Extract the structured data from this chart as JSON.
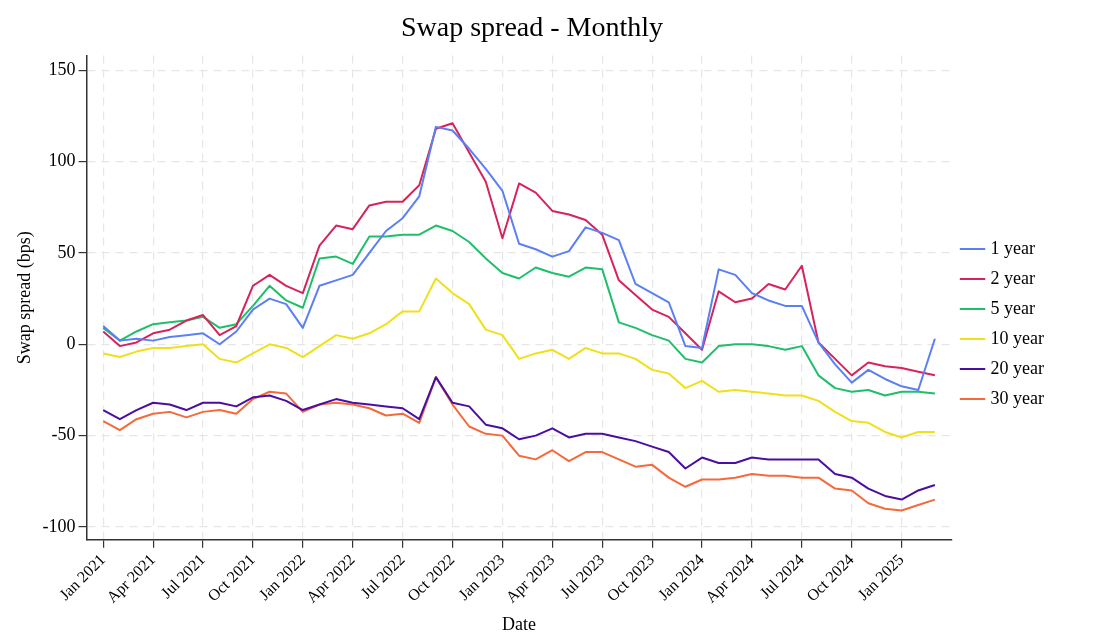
{
  "chart_data": {
    "type": "line",
    "title": "Swap spread - Monthly",
    "xlabel": "Date",
    "ylabel": "Swap spread (bps)",
    "x": [
      "2021-01",
      "2021-02",
      "2021-03",
      "2021-04",
      "2021-05",
      "2021-06",
      "2021-07",
      "2021-08",
      "2021-09",
      "2021-10",
      "2021-11",
      "2021-12",
      "2022-01",
      "2022-02",
      "2022-03",
      "2022-04",
      "2022-05",
      "2022-06",
      "2022-07",
      "2022-08",
      "2022-09",
      "2022-10",
      "2022-11",
      "2022-12",
      "2023-01",
      "2023-02",
      "2023-03",
      "2023-04",
      "2023-05",
      "2023-06",
      "2023-07",
      "2023-08",
      "2023-09",
      "2023-10",
      "2023-11",
      "2023-12",
      "2024-01",
      "2024-02",
      "2024-03",
      "2024-04",
      "2024-05",
      "2024-06",
      "2024-07",
      "2024-08",
      "2024-09",
      "2024-10",
      "2024-11",
      "2024-12",
      "2025-01",
      "2025-02",
      "2025-03"
    ],
    "series": [
      {
        "name": "1 year",
        "color": "#5b7ff5",
        "values": [
          10,
          2,
          3,
          2,
          4,
          5,
          6,
          0,
          7,
          19,
          25,
          22,
          9,
          32,
          35,
          38,
          50,
          62,
          69,
          81,
          119,
          117,
          107,
          96,
          84,
          55,
          52,
          48,
          51,
          64,
          61,
          57,
          33,
          28,
          23,
          -1,
          -2,
          41,
          38,
          28,
          24,
          21,
          21,
          1,
          -11,
          -21,
          -14,
          -19,
          -23,
          -25,
          3
        ]
      },
      {
        "name": "2 year",
        "color": "#d6245a",
        "values": [
          7,
          -1,
          1,
          6,
          8,
          13,
          16,
          5,
          10,
          32,
          38,
          32,
          28,
          54,
          65,
          63,
          76,
          78,
          78,
          87,
          118,
          121,
          105,
          89,
          58,
          88,
          83,
          73,
          71,
          68,
          60,
          35,
          27,
          19,
          15,
          6,
          -3,
          29,
          23,
          25,
          33,
          30,
          43,
          1,
          -8,
          -17,
          -10,
          -12,
          -13,
          -15,
          -17
        ]
      },
      {
        "name": "5 year",
        "color": "#1fbf6a",
        "values": [
          9,
          2,
          7,
          11,
          12,
          13,
          15,
          9,
          11,
          21,
          32,
          24,
          20,
          47,
          48,
          44,
          59,
          59,
          60,
          60,
          65,
          62,
          56,
          47,
          39,
          36,
          42,
          39,
          37,
          42,
          41,
          12,
          9,
          5,
          2,
          -8,
          -10,
          -1,
          0,
          0,
          -1,
          -3,
          -1,
          -17,
          -24,
          -26,
          -25,
          -28,
          -26,
          -26,
          -27
        ]
      },
      {
        "name": "10 year",
        "color": "#f0e01a",
        "values": [
          -5,
          -7,
          -4,
          -2,
          -2,
          -1,
          0,
          -8,
          -10,
          -5,
          0,
          -2,
          -7,
          -1,
          5,
          3,
          6,
          11,
          18,
          18,
          36,
          28,
          22,
          8,
          5,
          -8,
          -5,
          -3,
          -8,
          -2,
          -5,
          -5,
          -8,
          -14,
          -16,
          -24,
          -20,
          -26,
          -25,
          -26,
          -27,
          -28,
          -28,
          -31,
          -37,
          -42,
          -43,
          -48,
          -51,
          -48,
          -48
        ]
      },
      {
        "name": "20 year",
        "color": "#4b0fa0",
        "values": [
          -36,
          -41,
          -36,
          -32,
          -33,
          -36,
          -32,
          -32,
          -34,
          -29,
          -28,
          -31,
          -36,
          -33,
          -30,
          -32,
          -33,
          -34,
          -35,
          -41,
          -18,
          -32,
          -34,
          -44,
          -46,
          -52,
          -50,
          -46,
          -51,
          -49,
          -49,
          -51,
          -53,
          -56,
          -59,
          -68,
          -62,
          -65,
          -65,
          -62,
          -63,
          -63,
          -63,
          -63,
          -71,
          -73,
          -79,
          -83,
          -85,
          -80,
          -77
        ]
      },
      {
        "name": "30 year",
        "color": "#f56a3a",
        "values": [
          -42,
          -47,
          -41,
          -38,
          -37,
          -40,
          -37,
          -36,
          -38,
          -30,
          -26,
          -27,
          -37,
          -33,
          -32,
          -33,
          -35,
          -39,
          -38,
          -43,
          -18,
          -33,
          -45,
          -49,
          -50,
          -61,
          -63,
          -58,
          -64,
          -59,
          -59,
          -63,
          -67,
          -66,
          -73,
          -78,
          -74,
          -74,
          -73,
          -71,
          -72,
          -72,
          -73,
          -73,
          -79,
          -80,
          -87,
          -90,
          -91,
          -88,
          -85
        ]
      }
    ],
    "xlim": [
      "2020-12",
      "2025-04"
    ],
    "xticks": [
      {
        "value": "2021-01",
        "label": "Jan 2021"
      },
      {
        "value": "2021-04",
        "label": "Apr 2021"
      },
      {
        "value": "2021-07",
        "label": "Jul 2021"
      },
      {
        "value": "2021-10",
        "label": "Oct 2021"
      },
      {
        "value": "2022-01",
        "label": "Jan 2022"
      },
      {
        "value": "2022-04",
        "label": "Apr 2022"
      },
      {
        "value": "2022-07",
        "label": "Jul 2022"
      },
      {
        "value": "2022-10",
        "label": "Oct 2022"
      },
      {
        "value": "2023-01",
        "label": "Jan 2023"
      },
      {
        "value": "2023-04",
        "label": "Apr 2023"
      },
      {
        "value": "2023-07",
        "label": "Jul 2023"
      },
      {
        "value": "2023-10",
        "label": "Oct 2023"
      },
      {
        "value": "2024-01",
        "label": "Jan 2024"
      },
      {
        "value": "2024-04",
        "label": "Apr 2024"
      },
      {
        "value": "2024-07",
        "label": "Jul 2024"
      },
      {
        "value": "2024-10",
        "label": "Oct 2024"
      },
      {
        "value": "2025-01",
        "label": "Jan 2025"
      }
    ],
    "ylim": [
      -107,
      158
    ],
    "yticks": [
      -100,
      -50,
      0,
      50,
      100,
      150
    ],
    "grid": true,
    "legend": "right",
    "marker": "none",
    "line_style": "solid"
  }
}
